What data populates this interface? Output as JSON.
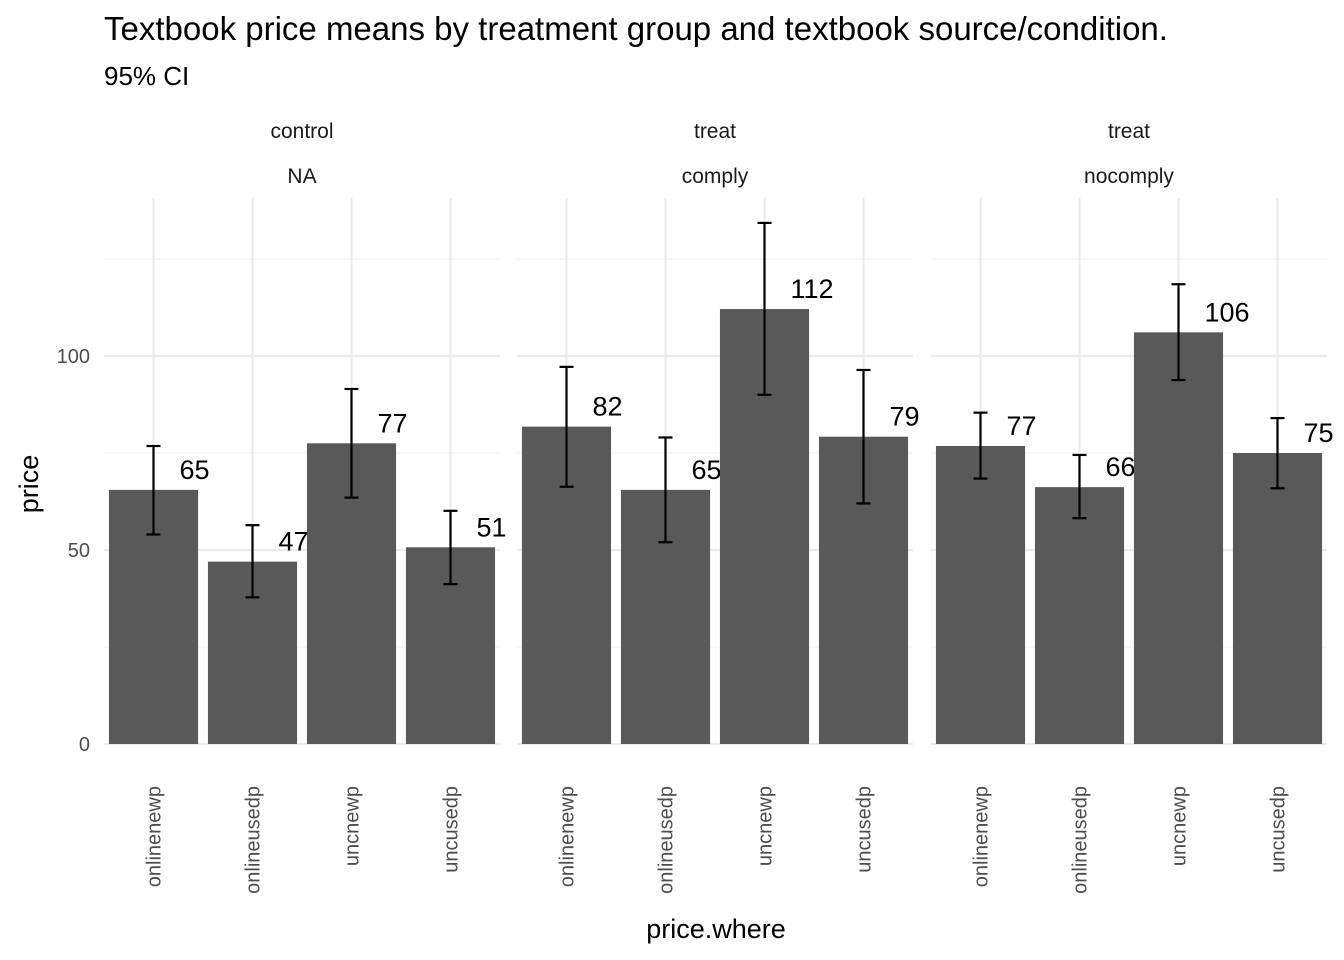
{
  "chart_data": {
    "type": "bar",
    "title": "Textbook price means by treatment group and textbook source/condition.",
    "subtitle": "95% CI",
    "xlabel": "price.where",
    "ylabel": "price",
    "ylim": [
      0,
      141
    ],
    "y_ticks": [
      0,
      50,
      100
    ],
    "categories": [
      "onlinenewp",
      "onlineusedp",
      "uncnewp",
      "uncusedp"
    ],
    "facets": [
      {
        "strip_top": "control",
        "strip_bottom": "NA",
        "values": [
          65.5,
          47.0,
          77.5,
          50.7
        ],
        "labels": [
          "65",
          "47",
          "77",
          "51"
        ],
        "ci_low": [
          54.0,
          37.8,
          63.5,
          41.2
        ],
        "ci_high": [
          76.8,
          56.4,
          91.5,
          60.1
        ]
      },
      {
        "strip_top": "treat",
        "strip_bottom": "comply",
        "values": [
          81.8,
          65.5,
          112.1,
          79.2
        ],
        "labels": [
          "82",
          "65",
          "112",
          "79"
        ],
        "ci_low": [
          66.3,
          52.0,
          90.0,
          62.0
        ],
        "ci_high": [
          97.2,
          79.0,
          134.3,
          96.4
        ]
      },
      {
        "strip_top": "treat",
        "strip_bottom": "nocomply",
        "values": [
          76.8,
          66.2,
          106.1,
          75.0
        ],
        "labels": [
          "77",
          "66",
          "106",
          "75"
        ],
        "ci_low": [
          68.4,
          58.2,
          93.8,
          65.9
        ],
        "ci_high": [
          85.4,
          74.5,
          118.5,
          84.0
        ]
      }
    ],
    "grid": true,
    "legend": "none"
  }
}
